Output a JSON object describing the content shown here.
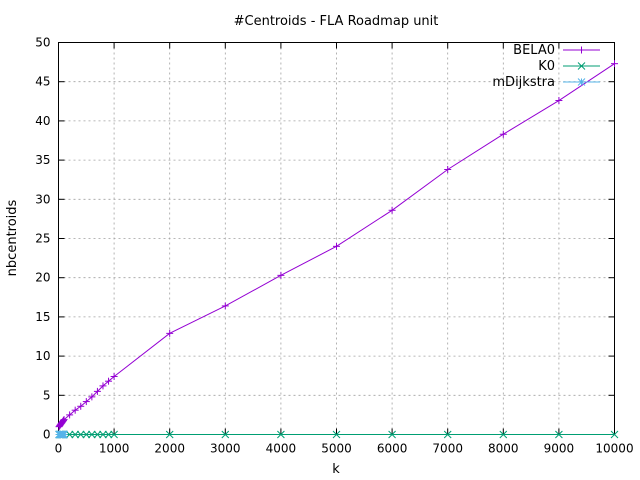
{
  "chart_data": {
    "type": "line",
    "title": "#Centroids - FLA Roadmap unit",
    "xlabel": "k",
    "ylabel": "nbcentroids",
    "xlim": [
      0,
      10000
    ],
    "ylim": [
      0,
      50
    ],
    "xticks": [
      0,
      1000,
      2000,
      3000,
      4000,
      5000,
      6000,
      7000,
      8000,
      9000,
      10000
    ],
    "yticks": [
      0,
      5,
      10,
      15,
      20,
      25,
      30,
      35,
      40,
      45,
      50
    ],
    "grid": true,
    "legend_position": "top-right",
    "series": [
      {
        "name": "BELA0",
        "color": "#9400d3",
        "marker": "plus",
        "x": [
          10,
          20,
          30,
          40,
          50,
          60,
          70,
          80,
          90,
          100,
          200,
          300,
          400,
          500,
          600,
          700,
          800,
          900,
          1000,
          2000,
          3000,
          4000,
          5000,
          6000,
          7000,
          8000,
          9000,
          10000
        ],
        "y": [
          1.0,
          1.1,
          1.2,
          1.3,
          1.4,
          1.5,
          1.6,
          1.7,
          1.8,
          1.9,
          2.5,
          3.1,
          3.6,
          4.2,
          4.8,
          5.5,
          6.2,
          6.8,
          7.4,
          12.9,
          16.4,
          20.3,
          24.0,
          28.6,
          33.8,
          38.3,
          42.6,
          47.3
        ]
      },
      {
        "name": "K0",
        "color": "#009e73",
        "marker": "cross",
        "x": [
          10,
          20,
          30,
          40,
          50,
          60,
          70,
          80,
          90,
          100,
          200,
          300,
          400,
          500,
          600,
          700,
          800,
          900,
          1000,
          2000,
          3000,
          4000,
          5000,
          6000,
          7000,
          8000,
          9000,
          10000
        ],
        "y": [
          0,
          0,
          0,
          0,
          0,
          0,
          0,
          0,
          0,
          0,
          0,
          0,
          0,
          0,
          0,
          0,
          0,
          0,
          0,
          0,
          0,
          0,
          0,
          0,
          0,
          0,
          0,
          0
        ]
      },
      {
        "name": "mDijkstra",
        "color": "#56b4e9",
        "marker": "star",
        "x": [
          10,
          20,
          30,
          40,
          50,
          60,
          70,
          80,
          90,
          100
        ],
        "y": [
          0,
          0,
          0,
          0,
          0,
          0,
          0,
          0,
          0,
          0
        ]
      }
    ]
  }
}
